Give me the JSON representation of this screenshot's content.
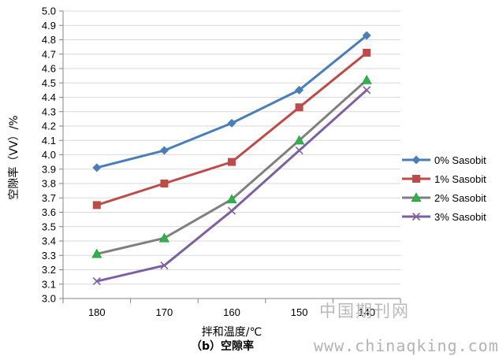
{
  "chart_data": {
    "type": "line",
    "title": "",
    "caption": "（b）空隙率",
    "xlabel": "拌和温度/℃",
    "ylabel": "空隙率（VV）/%",
    "categories": [
      "180",
      "170",
      "160",
      "150",
      "140"
    ],
    "ylim": [
      3.0,
      5.0
    ],
    "ytick_step": 0.1,
    "ytick_labels": [
      "3.0",
      "3.1",
      "3.2",
      "3.3",
      "3.4",
      "3.5",
      "3.6",
      "3.7",
      "3.8",
      "3.9",
      "4.0",
      "4.1",
      "4.2",
      "4.3",
      "4.4",
      "4.5",
      "4.6",
      "4.7",
      "4.8",
      "4.9",
      "5.0"
    ],
    "grid": "horizontal",
    "legend_position": "right",
    "series": [
      {
        "name": "0% Sasobit",
        "values": [
          3.91,
          4.03,
          4.22,
          4.45,
          4.83
        ],
        "color": "#4a7ebb",
        "marker": "diamond"
      },
      {
        "name": "1% Sasobit",
        "values": [
          3.65,
          3.8,
          3.95,
          4.33,
          4.71
        ],
        "color": "#be4b48",
        "marker": "square"
      },
      {
        "name": "2% Sasobit",
        "values": [
          3.31,
          3.42,
          3.69,
          4.1,
          4.52
        ],
        "color": "#808080",
        "marker": "triangle"
      },
      {
        "name": "3% Sasobit",
        "values": [
          3.12,
          3.23,
          3.61,
          4.03,
          4.45
        ],
        "color": "#7d60a0",
        "marker": "x"
      }
    ]
  },
  "watermark": {
    "site_cn": "中国期刊网",
    "url": "www.chinaqking.com"
  }
}
